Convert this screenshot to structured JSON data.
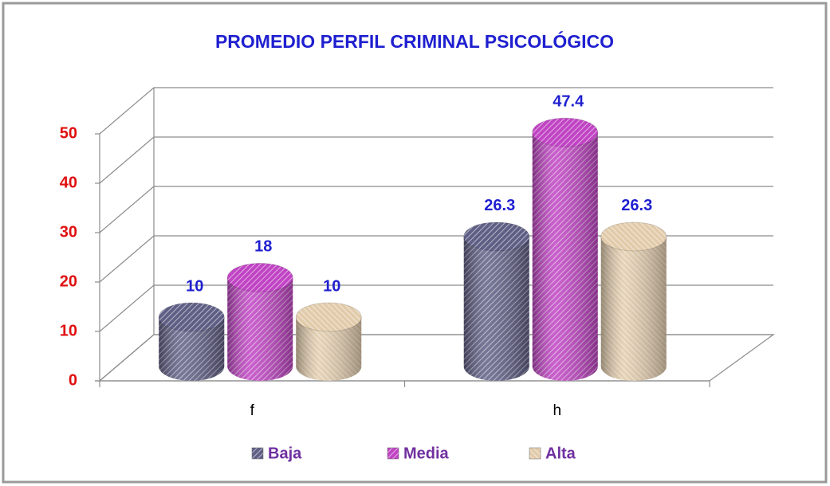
{
  "chart_data": {
    "type": "bar3d",
    "title": "PROMEDIO PERFIL CRIMINAL PSICOLÓGICO",
    "categories": [
      "f",
      "h"
    ],
    "series": [
      {
        "name": "Baja",
        "color": "#5f5f86",
        "values": [
          10,
          26.3
        ]
      },
      {
        "name": "Media",
        "color": "#c044c4",
        "values": [
          18,
          47.4
        ]
      },
      {
        "name": "Alta",
        "color": "#e2cbaa",
        "values": [
          10,
          26.3
        ]
      }
    ],
    "ylim": [
      0,
      50
    ],
    "yticks": [
      0,
      10,
      20,
      30,
      40,
      50
    ],
    "grid": true,
    "legend": "bottom"
  }
}
